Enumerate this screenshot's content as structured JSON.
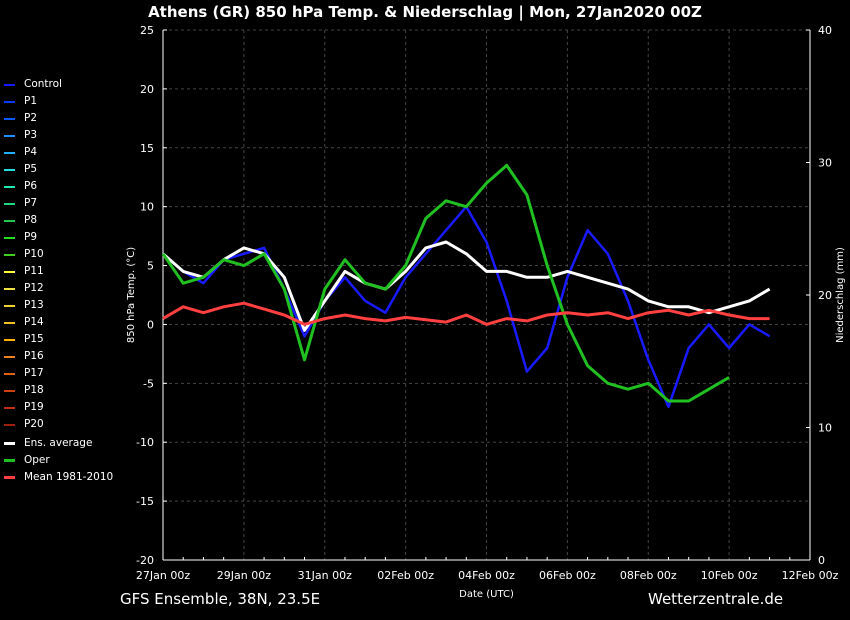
{
  "title": "Athens  (GR)  850 hPa Temp. & Niederschlag | Mon, 27Jan2020 00Z",
  "footer_left": "GFS Ensemble, 38N, 23.5E",
  "footer_right": "Wetterzentrale.de",
  "legend": [
    {
      "label": "Control",
      "color": "#1a1aff"
    },
    {
      "label": "P1",
      "color": "#0a3cff"
    },
    {
      "label": "P2",
      "color": "#0a5aff"
    },
    {
      "label": "P3",
      "color": "#1e90ff"
    },
    {
      "label": "P4",
      "color": "#20b0ff"
    },
    {
      "label": "P5",
      "color": "#20e0e0"
    },
    {
      "label": "P6",
      "color": "#20e8b0"
    },
    {
      "label": "P7",
      "color": "#20d880"
    },
    {
      "label": "P8",
      "color": "#20c850"
    },
    {
      "label": "P9",
      "color": "#20e020"
    },
    {
      "label": "P10",
      "color": "#40d020"
    },
    {
      "label": "P11",
      "color": "#ffff30"
    },
    {
      "label": "P12",
      "color": "#f0e040"
    },
    {
      "label": "P13",
      "color": "#f0d030"
    },
    {
      "label": "P14",
      "color": "#f0c020"
    },
    {
      "label": "P15",
      "color": "#ffb000"
    },
    {
      "label": "P16",
      "color": "#f08020"
    },
    {
      "label": "P17",
      "color": "#e06010"
    },
    {
      "label": "P18",
      "color": "#d04010"
    },
    {
      "label": "P19",
      "color": "#c03010"
    },
    {
      "label": "P20",
      "color": "#a02010"
    },
    {
      "label": "Ens. average",
      "color": "#ffffff",
      "thick": true
    },
    {
      "label": "Oper",
      "color": "#20c020",
      "thick": true
    },
    {
      "label": "Mean 1981-2010",
      "color": "#ff4040",
      "thick": true
    }
  ],
  "chart_data": {
    "type": "line",
    "xlabel": "Date (UTC)",
    "ylabel": "850 hPa Temp. (°C)",
    "y2label": "Niederschlag (mm)",
    "xlim": [
      "2020-01-27T00",
      "2020-02-12T00"
    ],
    "ylim": [
      -20,
      25
    ],
    "y2lim": [
      0,
      40
    ],
    "x_tick_labels": [
      "27Jan 00z",
      "29Jan 00z",
      "31Jan 00z",
      "02Feb 00z",
      "04Feb 00z",
      "06Feb 00z",
      "08Feb 00z",
      "10Feb 00z",
      "12Feb 00z"
    ],
    "y_ticks": [
      -20,
      -15,
      -10,
      -5,
      0,
      5,
      10,
      15,
      20,
      25
    ],
    "y2_ticks": [
      0,
      10,
      20,
      30,
      40
    ],
    "grid": true,
    "series": [
      {
        "name": "Control",
        "color": "#1a1aff",
        "values": [
          [
            0,
            6
          ],
          [
            1,
            4.5
          ],
          [
            2,
            3.5
          ],
          [
            3,
            5.5
          ],
          [
            4,
            6
          ],
          [
            5,
            6.5
          ],
          [
            6,
            3
          ],
          [
            7,
            -1
          ],
          [
            8,
            2
          ],
          [
            9,
            4
          ],
          [
            10,
            2
          ],
          [
            11,
            1
          ],
          [
            12,
            4
          ],
          [
            13,
            6
          ],
          [
            14,
            8
          ],
          [
            15,
            10
          ],
          [
            16,
            7
          ],
          [
            17,
            2
          ],
          [
            18,
            -4
          ],
          [
            19,
            -2
          ],
          [
            20,
            4
          ],
          [
            21,
            8
          ],
          [
            22,
            6
          ],
          [
            23,
            2
          ],
          [
            24,
            -3
          ],
          [
            25,
            -7
          ],
          [
            26,
            -2
          ],
          [
            27,
            0
          ],
          [
            28,
            -2
          ],
          [
            29,
            0
          ],
          [
            30,
            -1
          ]
        ]
      },
      {
        "name": "Ens. average",
        "color": "#ffffff",
        "values": [
          [
            0,
            6
          ],
          [
            1,
            4.5
          ],
          [
            2,
            4
          ],
          [
            3,
            5.5
          ],
          [
            4,
            6.5
          ],
          [
            5,
            6
          ],
          [
            6,
            4
          ],
          [
            7,
            -0.5
          ],
          [
            8,
            2
          ],
          [
            9,
            4.5
          ],
          [
            10,
            3.5
          ],
          [
            11,
            3
          ],
          [
            12,
            4.5
          ],
          [
            13,
            6.5
          ],
          [
            14,
            7
          ],
          [
            15,
            6
          ],
          [
            16,
            4.5
          ],
          [
            17,
            4.5
          ],
          [
            18,
            4
          ],
          [
            19,
            4
          ],
          [
            20,
            4.5
          ],
          [
            21,
            4
          ],
          [
            22,
            3.5
          ],
          [
            23,
            3
          ],
          [
            24,
            2
          ],
          [
            25,
            1.5
          ],
          [
            26,
            1.5
          ],
          [
            27,
            1
          ],
          [
            28,
            1.5
          ],
          [
            29,
            2
          ],
          [
            30,
            3
          ]
        ]
      },
      {
        "name": "Oper",
        "color": "#20c020",
        "values": [
          [
            0,
            6
          ],
          [
            1,
            3.5
          ],
          [
            2,
            4
          ],
          [
            3,
            5.5
          ],
          [
            4,
            5
          ],
          [
            5,
            6
          ],
          [
            6,
            3
          ],
          [
            7,
            -3
          ],
          [
            8,
            3
          ],
          [
            9,
            5.5
          ],
          [
            10,
            3.5
          ],
          [
            11,
            3
          ],
          [
            12,
            5
          ],
          [
            13,
            9
          ],
          [
            14,
            10.5
          ],
          [
            15,
            10
          ],
          [
            16,
            12
          ],
          [
            17,
            13.5
          ],
          [
            18,
            11
          ],
          [
            19,
            5
          ],
          [
            20,
            0
          ],
          [
            21,
            -3.5
          ],
          [
            22,
            -5
          ],
          [
            23,
            -5.5
          ],
          [
            24,
            -5
          ],
          [
            25,
            -6.5
          ],
          [
            26,
            -6.5
          ],
          [
            27,
            -5.5
          ],
          [
            28,
            -4.5
          ]
        ]
      },
      {
        "name": "Mean 1981-2010",
        "color": "#ff4040",
        "values": [
          [
            0,
            0.5
          ],
          [
            1,
            1.5
          ],
          [
            2,
            1
          ],
          [
            3,
            1.5
          ],
          [
            4,
            1.8
          ],
          [
            5,
            1.3
          ],
          [
            6,
            0.8
          ],
          [
            7,
            0
          ],
          [
            8,
            0.5
          ],
          [
            9,
            0.8
          ],
          [
            10,
            0.5
          ],
          [
            11,
            0.3
          ],
          [
            12,
            0.6
          ],
          [
            13,
            0.4
          ],
          [
            14,
            0.2
          ],
          [
            15,
            0.8
          ],
          [
            16,
            0
          ],
          [
            17,
            0.5
          ],
          [
            18,
            0.3
          ],
          [
            19,
            0.8
          ],
          [
            20,
            1
          ],
          [
            21,
            0.8
          ],
          [
            22,
            1
          ],
          [
            23,
            0.5
          ],
          [
            24,
            1
          ],
          [
            25,
            1.2
          ],
          [
            26,
            0.8
          ],
          [
            27,
            1.2
          ],
          [
            28,
            0.8
          ],
          [
            29,
            0.5
          ],
          [
            30,
            0.5
          ]
        ]
      }
    ]
  }
}
